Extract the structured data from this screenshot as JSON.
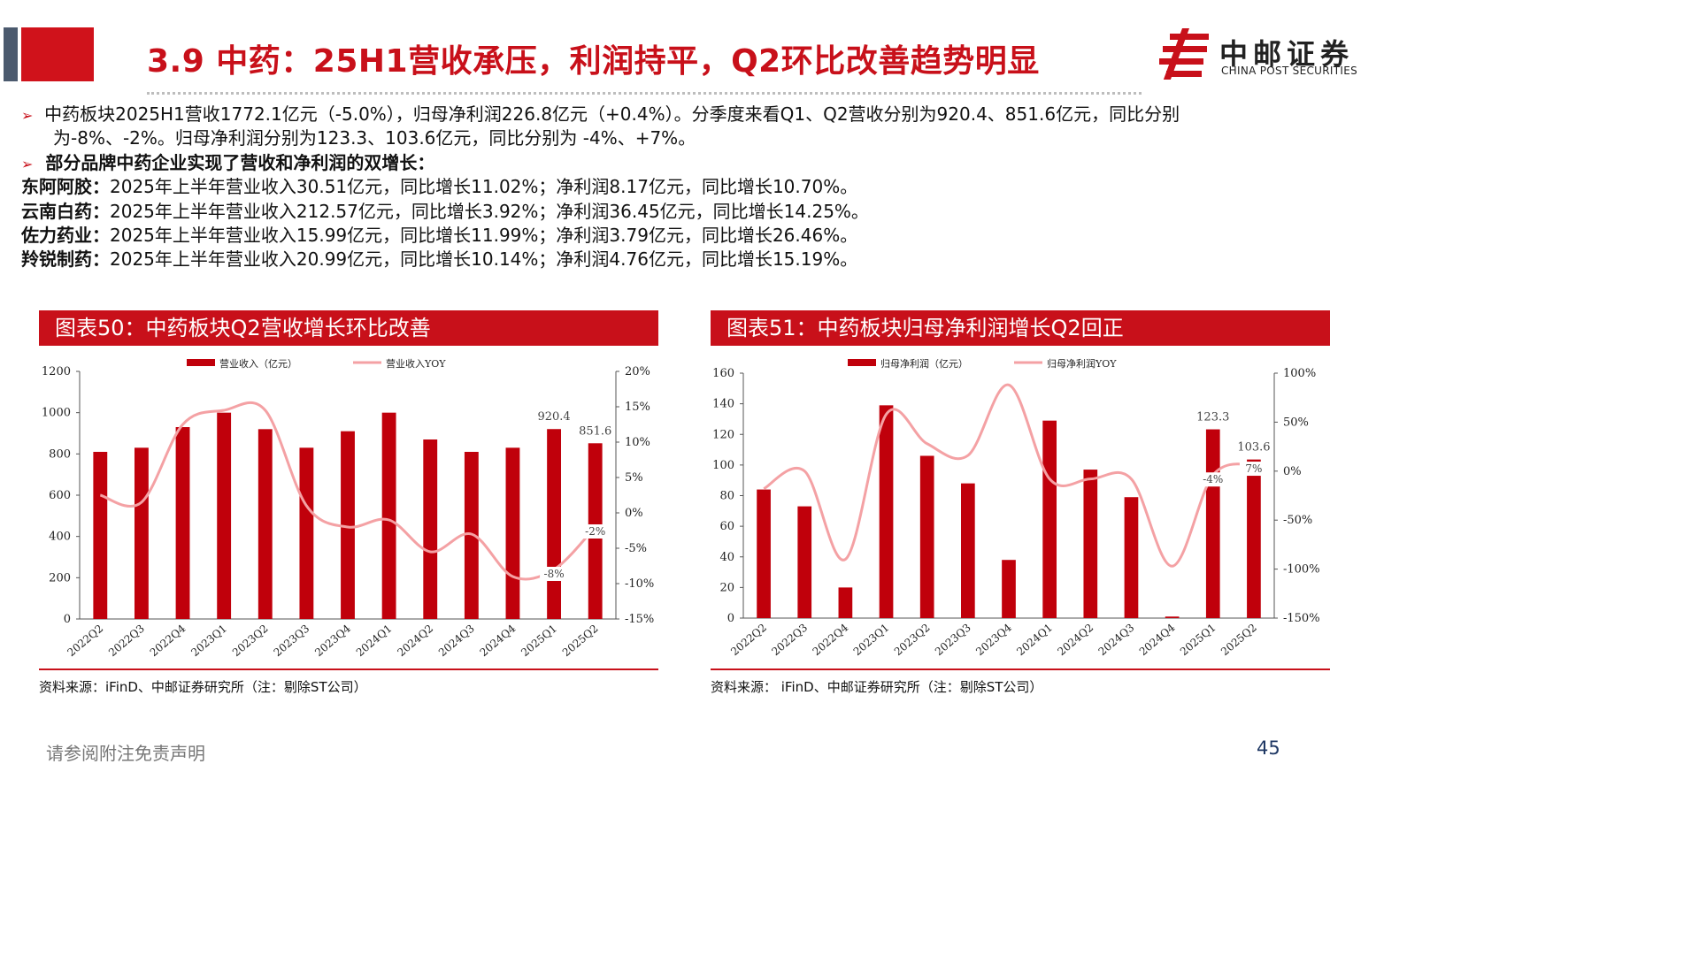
{
  "header": {
    "title": "3.9 中药：25H1营收承压，利润持平，Q2环比改善趋势明显",
    "logo_cn": "中邮证券",
    "logo_en": "CHINA POST SECURITIES"
  },
  "bullets": {
    "b1_line1": "中药板块2025H1营收1772.1亿元（-5.0%），归母净利润226.8亿元（+0.4%）。分季度来看Q1、Q2营收分别为920.4、851.6亿元，同比分别",
    "b1_line2": "为-8%、-2%。归母净利润分别为123.3、103.6亿元，同比分别为 -4%、+7%。",
    "b2": "部分品牌中药企业实现了营收和净利润的双增长：",
    "companies": [
      {
        "name": "东阿阿胶：",
        "text": "2025年上半年营业收入30.51亿元，同比增长11.02%；净利润8.17亿元，同比增长10.70%。"
      },
      {
        "name": "云南白药：",
        "text": "2025年上半年营业收入212.57亿元，同比增长3.92%；净利润36.45亿元，同比增长14.25%。"
      },
      {
        "name": "佐力药业：",
        "text": "2025年上半年营业收入15.99亿元，同比增长11.99%；净利润3.79亿元，同比增长26.46%。"
      },
      {
        "name": "羚锐制药：",
        "text": "2025年上半年营业收入20.99亿元，同比增长10.14%；净利润4.76亿元，同比增长15.19%。"
      }
    ]
  },
  "panels": {
    "left_title": "图表50：中药板块Q2营收增长环比改善",
    "right_title": "图表51：中药板块归母净利润增长Q2回正",
    "left_source": "资料来源：iFinD、中邮证券研究所（注：剔除ST公司）",
    "right_source": "资料来源： iFinD、中邮证券研究所（注：剔除ST公司）"
  },
  "footer": {
    "disclaimer": "请参阅附注免责声明",
    "page": "45"
  },
  "colors": {
    "bar": "#c0000b",
    "line": "#f4a1a4",
    "brand": "#c8101a"
  },
  "chart_data": [
    {
      "type": "bar",
      "categories": [
        "2022Q2",
        "2022Q3",
        "2022Q4",
        "2023Q1",
        "2023Q2",
        "2023Q3",
        "2023Q4",
        "2024Q1",
        "2024Q2",
        "2024Q3",
        "2024Q4",
        "2025Q1",
        "2025Q2"
      ],
      "series": [
        {
          "name": "营业收入（亿元）",
          "type": "bar",
          "axis": "left",
          "values": [
            810,
            830,
            930,
            1000,
            920,
            830,
            910,
            1000,
            870,
            810,
            830,
            920.4,
            851.6
          ]
        },
        {
          "name": "营业收入YOY",
          "type": "line",
          "axis": "right",
          "values": [
            2.5,
            1.5,
            12.5,
            14.5,
            14.5,
            1,
            -2,
            -1,
            -5.5,
            -3,
            -9,
            -8,
            -2
          ]
        }
      ],
      "ylim": [
        0,
        1200
      ],
      "yticks": [
        0,
        200,
        400,
        600,
        800,
        1000,
        1200
      ],
      "y2lim": [
        -15,
        20
      ],
      "y2ticks": [
        "-15%",
        "-10%",
        "-5%",
        "0%",
        "5%",
        "10%",
        "15%",
        "20%"
      ],
      "annotations": [
        {
          "index": 11,
          "label": "920.4",
          "series": 0
        },
        {
          "index": 12,
          "label": "851.6",
          "series": 0
        },
        {
          "index": 11,
          "label": "-8%",
          "series": 1
        },
        {
          "index": 12,
          "label": "-2%",
          "series": 1
        }
      ],
      "legend": "top-center"
    },
    {
      "type": "bar",
      "categories": [
        "2022Q2",
        "2022Q3",
        "2022Q4",
        "2023Q1",
        "2023Q2",
        "2023Q3",
        "2023Q4",
        "2024Q1",
        "2024Q2",
        "2024Q3",
        "2024Q4",
        "2025Q1",
        "2025Q2"
      ],
      "series": [
        {
          "name": "归母净利润（亿元）",
          "type": "bar",
          "axis": "left",
          "values": [
            84,
            73,
            20,
            139,
            106,
            88,
            38,
            129,
            97,
            79,
            1,
            123.3,
            103.6
          ]
        },
        {
          "name": "归母净利润YOY",
          "type": "line",
          "axis": "right",
          "values": [
            -18,
            0,
            -90,
            58,
            28,
            16,
            88,
            -8,
            -8,
            -8,
            -97,
            -4,
            7
          ]
        }
      ],
      "ylim": [
        0,
        160
      ],
      "yticks": [
        0,
        20,
        40,
        60,
        80,
        100,
        120,
        140,
        160
      ],
      "y2lim": [
        -150,
        100
      ],
      "y2ticks": [
        "-150%",
        "-100%",
        "-50%",
        "0%",
        "50%",
        "100%"
      ],
      "annotations": [
        {
          "index": 11,
          "label": "123.3",
          "series": 0
        },
        {
          "index": 12,
          "label": "103.6",
          "series": 0
        },
        {
          "index": 11,
          "label": "-4%",
          "series": 1
        },
        {
          "index": 12,
          "label": "7%",
          "series": 1
        }
      ],
      "legend": "top-center"
    }
  ]
}
